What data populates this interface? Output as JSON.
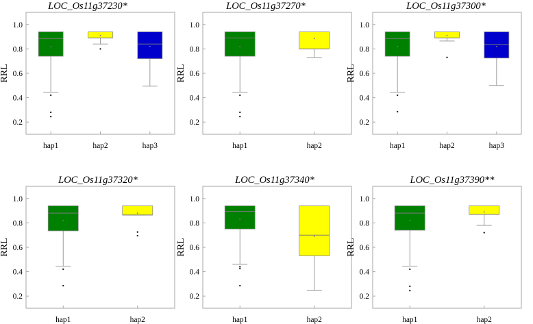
{
  "chart_data": [
    {
      "type": "box",
      "title": "LOC_Os11g37230*",
      "xlabel": "",
      "ylabel": "RRL",
      "ylim": [
        0.1,
        1.1
      ],
      "yticks": [
        "0.2",
        "0.4",
        "0.6",
        "0.8",
        "1.0"
      ],
      "categories": [
        "hap1",
        "hap2",
        "hap3"
      ],
      "boxes": [
        {
          "category": "hap1",
          "color": "#008000",
          "q1": 0.74,
          "median": 0.885,
          "q3": 0.94,
          "whisker_low": 0.445,
          "whisker_high": 0.94,
          "mean": 0.82,
          "outliers": [
            0.42,
            0.28,
            0.245
          ]
        },
        {
          "category": "hap2",
          "color": "#ffff00",
          "q1": 0.89,
          "median": 0.89,
          "q3": 0.94,
          "whisker_low": 0.84,
          "whisker_high": 0.94,
          "mean": 0.91,
          "outliers": [
            0.8
          ]
        },
        {
          "category": "hap3",
          "color": "#0000cc",
          "q1": 0.72,
          "median": 0.84,
          "q3": 0.94,
          "whisker_low": 0.495,
          "whisker_high": 0.94,
          "mean": 0.82,
          "outliers": []
        }
      ]
    },
    {
      "type": "box",
      "title": "LOC_Os11g37270*",
      "xlabel": "",
      "ylabel": "RRL",
      "ylim": [
        0.1,
        1.1
      ],
      "yticks": [
        "0.2",
        "0.4",
        "0.6",
        "0.8",
        "1.0"
      ],
      "categories": [
        "hap1",
        "hap2"
      ],
      "boxes": [
        {
          "category": "hap1",
          "color": "#008000",
          "q1": 0.74,
          "median": 0.89,
          "q3": 0.94,
          "whisker_low": 0.445,
          "whisker_high": 0.94,
          "mean": 0.82,
          "outliers": [
            0.42,
            0.28,
            0.245
          ]
        },
        {
          "category": "hap2",
          "color": "#ffff00",
          "q1": 0.8,
          "median": 0.8,
          "q3": 0.94,
          "whisker_low": 0.73,
          "whisker_high": 0.94,
          "mean": 0.885,
          "outliers": []
        }
      ]
    },
    {
      "type": "box",
      "title": "LOC_Os11g37300*",
      "xlabel": "",
      "ylabel": "RRL",
      "ylim": [
        0.1,
        1.1
      ],
      "yticks": [
        "0.2",
        "0.4",
        "0.6",
        "0.8",
        "1.0"
      ],
      "categories": [
        "hap1",
        "hap2",
        "hap3"
      ],
      "boxes": [
        {
          "category": "hap1",
          "color": "#008000",
          "q1": 0.74,
          "median": 0.885,
          "q3": 0.94,
          "whisker_low": 0.445,
          "whisker_high": 0.94,
          "mean": 0.82,
          "outliers": [
            0.42,
            0.285
          ]
        },
        {
          "category": "hap2",
          "color": "#ffff00",
          "q1": 0.89,
          "median": 0.89,
          "q3": 0.94,
          "whisker_low": 0.865,
          "whisker_high": 0.94,
          "mean": 0.91,
          "outliers": [
            0.73
          ]
        },
        {
          "category": "hap3",
          "color": "#0000cc",
          "q1": 0.725,
          "median": 0.835,
          "q3": 0.94,
          "whisker_low": 0.5,
          "whisker_high": 0.94,
          "mean": 0.82,
          "outliers": []
        }
      ]
    },
    {
      "type": "box",
      "title": "LOC_Os11g37320*",
      "xlabel": "",
      "ylabel": "RRL",
      "ylim": [
        0.1,
        1.1
      ],
      "yticks": [
        "0.2",
        "0.4",
        "0.6",
        "0.8",
        "1.0"
      ],
      "categories": [
        "hap1",
        "hap2"
      ],
      "boxes": [
        {
          "category": "hap1",
          "color": "#008000",
          "q1": 0.735,
          "median": 0.88,
          "q3": 0.94,
          "whisker_low": 0.445,
          "whisker_high": 0.94,
          "mean": 0.82,
          "outliers": [
            0.42,
            0.285
          ]
        },
        {
          "category": "hap2",
          "color": "#ffff00",
          "q1": 0.865,
          "median": 0.865,
          "q3": 0.94,
          "whisker_low": 0.865,
          "whisker_high": 0.94,
          "mean": 0.88,
          "outliers": [
            0.725,
            0.695
          ]
        }
      ]
    },
    {
      "type": "box",
      "title": "LOC_Os11g37340*",
      "xlabel": "",
      "ylabel": "RRL",
      "ylim": [
        0.1,
        1.1
      ],
      "yticks": [
        "0.2",
        "0.4",
        "0.6",
        "0.8",
        "1.0"
      ],
      "categories": [
        "hap1",
        "hap2"
      ],
      "boxes": [
        {
          "category": "hap1",
          "color": "#008000",
          "q1": 0.75,
          "median": 0.895,
          "q3": 0.94,
          "whisker_low": 0.46,
          "whisker_high": 0.94,
          "mean": 0.83,
          "outliers": [
            0.44,
            0.425,
            0.285
          ]
        },
        {
          "category": "hap2",
          "color": "#ffff00",
          "q1": 0.53,
          "median": 0.7,
          "q3": 0.94,
          "whisker_low": 0.245,
          "whisker_high": 0.94,
          "mean": 0.69,
          "outliers": []
        }
      ]
    },
    {
      "type": "box",
      "title": "LOC_Os11g37390**",
      "xlabel": "",
      "ylabel": "RRL",
      "ylim": [
        0.1,
        1.1
      ],
      "yticks": [
        "0.2",
        "0.4",
        "0.6",
        "0.8",
        "1.0"
      ],
      "categories": [
        "hap1",
        "hap2"
      ],
      "boxes": [
        {
          "category": "hap1",
          "color": "#008000",
          "q1": 0.74,
          "median": 0.88,
          "q3": 0.94,
          "whisker_low": 0.445,
          "whisker_high": 0.94,
          "mean": 0.82,
          "outliers": [
            0.42,
            0.28,
            0.245
          ]
        },
        {
          "category": "hap2",
          "color": "#ffff00",
          "q1": 0.87,
          "median": 0.87,
          "q3": 0.94,
          "whisker_low": 0.78,
          "whisker_high": 0.94,
          "mean": 0.89,
          "outliers": [
            0.72
          ]
        }
      ]
    }
  ]
}
